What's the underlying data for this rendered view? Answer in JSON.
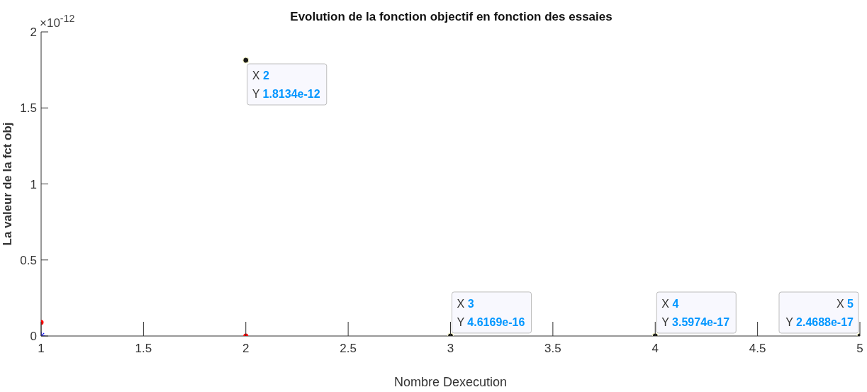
{
  "chart_data": {
    "type": "scatter",
    "title": "Evolution de la fonction objectif en fonction des essaies",
    "xlabel": "Nombre Dexecution",
    "ylabel": "La valeur de la fct obj",
    "annotations": [
      "×10$^{-12}$",
      {
        "text": "X 2",
        "x": 2,
        "y": 1.8134
      },
      {
        "text": "Y 1.8134e-12",
        "x": 2,
        "y": 1.8134
      },
      {
        "text": "X 3",
        "x": 3,
        "y": 0.00046169
      },
      {
        "text": "Y 4.6169e-16",
        "x": 3,
        "y": 0.00046169
      },
      {
        "text": "X 4",
        "x": 4,
        "y": 3.5974e-05
      },
      {
        "text": "Y 3.5974e-17",
        "x": 4,
        "y": 3.5974e-05
      },
      {
        "text": "X 5",
        "x": 5,
        "y": 2.4688e-05
      },
      {
        "text": "Y 2.4688e-17",
        "x": 5,
        "y": 2.4688e-05
      }
    ],
    "xlim": [
      1,
      5
    ],
    "xticks": [
      1,
      1.5,
      2,
      2.5,
      3,
      3.5,
      4,
      4.5,
      5
    ],
    "ylim": [
      0,
      2
    ],
    "yticks": [
      0,
      0.5,
      1,
      1.5,
      2
    ],
    "series": [
      {
        "color": "#1a1a1a",
        "marker": "circle",
        "x": [
          2,
          3,
          4,
          5
        ],
        "values": [
          1.8134,
          0.00046169,
          3.5974e-05,
          2.4688e-05
        ]
      },
      {
        "color": "#ff0000",
        "marker": "circle",
        "x": [
          1,
          2
        ],
        "values": [
          0.09,
          0
        ]
      },
      {
        "color": "#0000ff",
        "marker": "cross",
        "x": [
          1
        ],
        "values": [
          0
        ]
      }
    ]
  }
}
